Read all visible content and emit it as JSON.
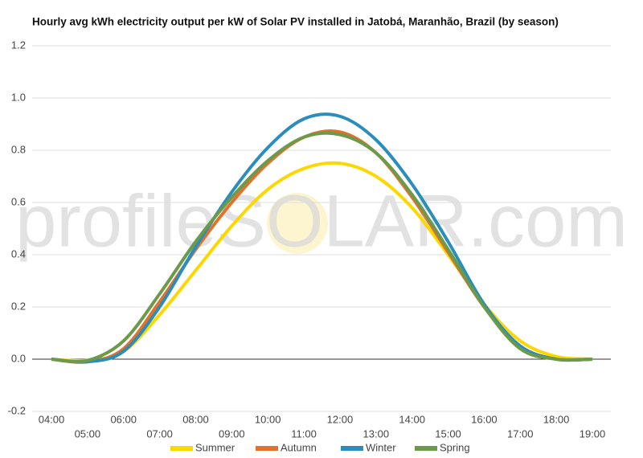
{
  "chart_data": {
    "type": "line",
    "title": "Hourly avg kWh electricity output per kW of Solar PV installed in Jatobá, Maranhão, Brazil (by season)",
    "watermark": "profileSOLAR.com",
    "categories": [
      "04:00",
      "05:00",
      "06:00",
      "07:00",
      "08:00",
      "09:00",
      "10:00",
      "11:00",
      "12:00",
      "13:00",
      "14:00",
      "15:00",
      "16:00",
      "17:00",
      "18:00",
      "19:00"
    ],
    "series": [
      {
        "name": "Summer",
        "color": "#fad800",
        "values": [
          0,
          -0.005,
          0.03,
          0.17,
          0.34,
          0.51,
          0.65,
          0.73,
          0.75,
          0.7,
          0.58,
          0.4,
          0.21,
          0.07,
          0.01,
          0
        ]
      },
      {
        "name": "Autumn",
        "color": "#e2712c",
        "values": [
          0,
          -0.01,
          0.04,
          0.22,
          0.42,
          0.6,
          0.75,
          0.85,
          0.87,
          0.79,
          0.62,
          0.41,
          0.2,
          0.05,
          0,
          0
        ]
      },
      {
        "name": "Winter",
        "color": "#2a8dbb",
        "values": [
          0,
          -0.01,
          0.03,
          0.2,
          0.43,
          0.64,
          0.81,
          0.92,
          0.93,
          0.84,
          0.67,
          0.45,
          0.21,
          0.05,
          0,
          0
        ]
      },
      {
        "name": "Spring",
        "color": "#6b9a4b",
        "values": [
          0,
          -0.005,
          0.07,
          0.25,
          0.45,
          0.62,
          0.76,
          0.85,
          0.86,
          0.79,
          0.63,
          0.42,
          0.2,
          0.04,
          0,
          0
        ]
      }
    ],
    "ylim": [
      -0.2,
      1.2
    ],
    "yticks": [
      -0.2,
      {
        "value": 0,
        "label": "0.0"
      },
      0.2,
      0.4,
      0.6,
      0.8,
      {
        "value": 1,
        "label": "1.0"
      },
      1.2
    ],
    "grid": true,
    "legend": "bottom"
  }
}
